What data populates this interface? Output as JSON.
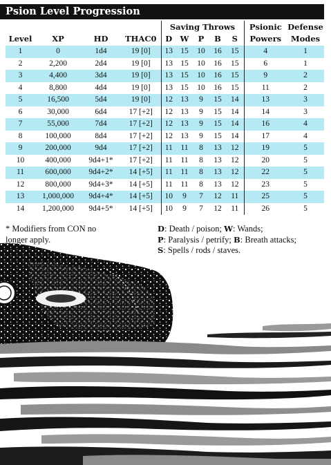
{
  "title": "Psion Level Progression",
  "table": {
    "group_header": "Saving Throws",
    "head": {
      "level": "Level",
      "xp": "XP",
      "hd": "HD",
      "thac0": "THAC0",
      "saves": [
        "D",
        "W",
        "P",
        "B",
        "S"
      ],
      "powers_1": "Psionic",
      "powers_2": "Powers",
      "modes_1": "Defense",
      "modes_2": "Modes"
    },
    "rows": [
      [
        "1",
        "0",
        "1d4",
        "19 [0]",
        "13",
        "15",
        "10",
        "16",
        "15",
        "4",
        "1"
      ],
      [
        "2",
        "2,200",
        "2d4",
        "19 [0]",
        "13",
        "15",
        "10",
        "16",
        "15",
        "6",
        "1"
      ],
      [
        "3",
        "4,400",
        "3d4",
        "19 [0]",
        "13",
        "15",
        "10",
        "16",
        "15",
        "9",
        "2"
      ],
      [
        "4",
        "8,800",
        "4d4",
        "19 [0]",
        "13",
        "15",
        "10",
        "16",
        "15",
        "11",
        "2"
      ],
      [
        "5",
        "16,500",
        "5d4",
        "19 [0]",
        "12",
        "13",
        "9",
        "15",
        "14",
        "13",
        "3"
      ],
      [
        "6",
        "30,000",
        "6d4",
        "17 [+2]",
        "12",
        "13",
        "9",
        "15",
        "14",
        "14",
        "3"
      ],
      [
        "7",
        "55,000",
        "7d4",
        "17 [+2]",
        "12",
        "13",
        "9",
        "15",
        "14",
        "16",
        "4"
      ],
      [
        "8",
        "100,000",
        "8d4",
        "17 [+2]",
        "12",
        "13",
        "9",
        "15",
        "14",
        "17",
        "4"
      ],
      [
        "9",
        "200,000",
        "9d4",
        "17 [+2]",
        "11",
        "11",
        "8",
        "13",
        "12",
        "19",
        "5"
      ],
      [
        "10",
        "400,000",
        "9d4+1*",
        "17 [+2]",
        "11",
        "11",
        "8",
        "13",
        "12",
        "20",
        "5"
      ],
      [
        "11",
        "600,000",
        "9d4+2*",
        "14 [+5]",
        "11",
        "11",
        "8",
        "13",
        "12",
        "22",
        "5"
      ],
      [
        "12",
        "800,000",
        "9d4+3*",
        "14 [+5]",
        "11",
        "11",
        "8",
        "13",
        "12",
        "23",
        "5"
      ],
      [
        "13",
        "1,000,000",
        "9d4+4*",
        "14 [+5]",
        "10",
        "9",
        "7",
        "12",
        "11",
        "25",
        "5"
      ],
      [
        "14",
        "1,200,000",
        "9d4+5*",
        "14 [+5]",
        "10",
        "9",
        "7",
        "12",
        "11",
        "26",
        "5"
      ]
    ]
  },
  "footnote_line1": "* Modifiers from CON no",
  "footnote_line2": "longer apply.",
  "legend": {
    "d_key": "D",
    "d_text": ": Death / poison; ",
    "w_key": "W",
    "w_text": ": Wands;",
    "p_key": "P",
    "p_text": ": Paralysis / petrify; ",
    "b_key": "B",
    "b_text": ": Breath attacks;",
    "s_key": "S",
    "s_text": ": Spells / rods / staves."
  },
  "colors": {
    "row_highlight": "#b5eaf5",
    "title_bar": "#111111",
    "art_grey": "#8a8a8a"
  }
}
